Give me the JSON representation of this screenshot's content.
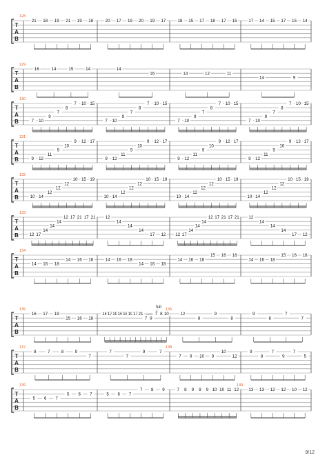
{
  "clef": [
    "T",
    "A",
    "B"
  ],
  "page_number": "9/12",
  "systems": [
    {
      "numbers": [
        {
          "b": 0,
          "text": "128"
        }
      ],
      "notes": [
        [
          {
            "s": 1,
            "t": "21"
          },
          {
            "s": 1,
            "t": "18"
          },
          {
            "s": 1,
            "t": "19"
          },
          {
            "s": 1,
            "t": "21"
          },
          {
            "s": 1,
            "t": "19"
          },
          {
            "s": 1,
            "t": "18"
          }
        ],
        [
          {
            "s": 1,
            "t": "20"
          },
          {
            "s": 1,
            "t": "17"
          },
          {
            "s": 1,
            "t": "19"
          },
          {
            "s": 1,
            "t": "20"
          },
          {
            "s": 1,
            "t": "19"
          },
          {
            "s": 1,
            "t": "17"
          }
        ],
        [
          {
            "s": 1,
            "t": "18"
          },
          {
            "s": 1,
            "t": "15"
          },
          {
            "s": 1,
            "t": "17"
          },
          {
            "s": 1,
            "t": "18"
          },
          {
            "s": 1,
            "t": "17"
          },
          {
            "s": 1,
            "t": "15"
          }
        ],
        [
          {
            "s": 1,
            "t": "17"
          },
          {
            "s": 1,
            "t": "14"
          },
          {
            "s": 1,
            "t": "15"
          },
          {
            "s": 1,
            "t": "17"
          },
          {
            "s": 1,
            "t": "15"
          },
          {
            "s": 1,
            "t": "14"
          }
        ]
      ]
    },
    {
      "numbers": [
        {
          "b": 0,
          "text": "129"
        }
      ],
      "notes": [
        [
          {
            "s": 1,
            "t": "16"
          },
          {
            "s": 1,
            "t": "14"
          },
          {
            "s": 1,
            "t": "15"
          },
          {
            "s": 1,
            "t": "14"
          }
        ],
        [
          {
            "s": 1,
            "t": "14"
          },
          {
            "s": 2,
            "t": "16"
          }
        ],
        [
          {
            "s": 2,
            "t": "14"
          },
          {
            "s": 2,
            "t": "12"
          },
          {
            "s": 2,
            "t": "11"
          }
        ],
        [
          {
            "s": 3,
            "t": "14"
          },
          {
            "s": 3,
            "t": "9"
          }
        ]
      ]
    },
    {
      "numbers": [
        {
          "b": 0,
          "text": "130"
        }
      ],
      "notes": [
        [
          {
            "s": 5,
            "t": "7"
          },
          {
            "s": 5,
            "t": "10"
          },
          {
            "s": 4,
            "t": "9"
          },
          {
            "s": 3,
            "t": "7"
          },
          {
            "s": 2,
            "t": "8"
          },
          {
            "s": 1,
            "t": "7"
          },
          {
            "s": 1,
            "t": "10"
          },
          {
            "s": 1,
            "t": "15"
          }
        ],
        [
          {
            "s": 5,
            "t": "7"
          },
          {
            "s": 5,
            "t": "10"
          },
          {
            "s": 4,
            "t": "9"
          },
          {
            "s": 3,
            "t": "7"
          },
          {
            "s": 2,
            "t": "8"
          },
          {
            "s": 1,
            "t": "7"
          },
          {
            "s": 1,
            "t": "10"
          },
          {
            "s": 1,
            "t": "15"
          }
        ],
        [
          {
            "s": 5,
            "t": "7"
          },
          {
            "s": 5,
            "t": "10"
          },
          {
            "s": 4,
            "t": "9"
          },
          {
            "s": 3,
            "t": "7"
          },
          {
            "s": 2,
            "t": "8"
          },
          {
            "s": 1,
            "t": "7"
          },
          {
            "s": 1,
            "t": "10"
          },
          {
            "s": 1,
            "t": "15"
          }
        ],
        [
          {
            "s": 5,
            "t": "7"
          },
          {
            "s": 5,
            "t": "10"
          },
          {
            "s": 4,
            "t": "9"
          },
          {
            "s": 3,
            "t": "7"
          },
          {
            "s": 2,
            "t": "8"
          },
          {
            "s": 1,
            "t": "7"
          },
          {
            "s": 1,
            "t": "10"
          },
          {
            "s": 1,
            "t": "15"
          }
        ]
      ]
    },
    {
      "numbers": [
        {
          "b": 0,
          "text": "131"
        }
      ],
      "notes": [
        [
          {
            "s": 5,
            "t": "9"
          },
          {
            "s": 5,
            "t": "12"
          },
          {
            "s": 4,
            "t": "11"
          },
          {
            "s": 3,
            "t": "9"
          },
          {
            "s": 2,
            "t": "10"
          },
          {
            "s": 1,
            "t": "9"
          },
          {
            "s": 1,
            "t": "12"
          },
          {
            "s": 1,
            "t": "17"
          }
        ],
        [
          {
            "s": 5,
            "t": "9"
          },
          {
            "s": 5,
            "t": "12"
          },
          {
            "s": 4,
            "t": "11"
          },
          {
            "s": 3,
            "t": "9"
          },
          {
            "s": 2,
            "t": "10"
          },
          {
            "s": 1,
            "t": "9"
          },
          {
            "s": 1,
            "t": "12"
          },
          {
            "s": 1,
            "t": "17"
          }
        ],
        [
          {
            "s": 5,
            "t": "9"
          },
          {
            "s": 5,
            "t": "12"
          },
          {
            "s": 4,
            "t": "11"
          },
          {
            "s": 3,
            "t": "9"
          },
          {
            "s": 2,
            "t": "10"
          },
          {
            "s": 1,
            "t": "9"
          },
          {
            "s": 1,
            "t": "12"
          },
          {
            "s": 1,
            "t": "17"
          }
        ],
        [
          {
            "s": 5,
            "t": "9"
          },
          {
            "s": 5,
            "t": "12"
          },
          {
            "s": 4,
            "t": "11"
          },
          {
            "s": 3,
            "t": "9"
          },
          {
            "s": 2,
            "t": "10"
          },
          {
            "s": 1,
            "t": "9"
          },
          {
            "s": 1,
            "t": "12"
          },
          {
            "s": 1,
            "t": "17"
          }
        ]
      ]
    },
    {
      "numbers": [
        {
          "b": 0,
          "text": "132"
        }
      ],
      "notes": [
        [
          {
            "s": 5,
            "t": "10"
          },
          {
            "s": 5,
            "t": "14"
          },
          {
            "s": 4,
            "t": "12"
          },
          {
            "s": 3,
            "t": "12"
          },
          {
            "s": 2,
            "t": "12"
          },
          {
            "s": 1,
            "t": "10"
          },
          {
            "s": 1,
            "t": "15"
          },
          {
            "s": 1,
            "t": "19"
          }
        ],
        [
          {
            "s": 5,
            "t": "10"
          },
          {
            "s": 5,
            "t": "14"
          },
          {
            "s": 4,
            "t": "12"
          },
          {
            "s": 3,
            "t": "12"
          },
          {
            "s": 2,
            "t": "12"
          },
          {
            "s": 1,
            "t": "10"
          },
          {
            "s": 1,
            "t": "15"
          },
          {
            "s": 1,
            "t": "19"
          }
        ],
        [
          {
            "s": 5,
            "t": "10"
          },
          {
            "s": 5,
            "t": "14"
          },
          {
            "s": 4,
            "t": "12"
          },
          {
            "s": 3,
            "t": "12"
          },
          {
            "s": 2,
            "t": "12"
          },
          {
            "s": 1,
            "t": "10"
          },
          {
            "s": 1,
            "t": "15"
          },
          {
            "s": 1,
            "t": "19"
          }
        ],
        [
          {
            "s": 5,
            "t": "10"
          },
          {
            "s": 5,
            "t": "14"
          },
          {
            "s": 4,
            "t": "12"
          },
          {
            "s": 3,
            "t": "12"
          },
          {
            "s": 2,
            "t": "12"
          },
          {
            "s": 1,
            "t": "10"
          },
          {
            "s": 1,
            "t": "15"
          },
          {
            "s": 1,
            "t": "19"
          }
        ]
      ]
    },
    {
      "numbers": [
        {
          "b": 0,
          "text": "133"
        }
      ],
      "notes": [
        [
          {
            "s": 5,
            "t": "12"
          },
          {
            "s": 5,
            "t": "17"
          },
          {
            "s": 4,
            "t": "14"
          },
          {
            "s": 3,
            "t": "14"
          },
          {
            "s": 2,
            "t": "14"
          },
          {
            "s": 1,
            "t": "12"
          },
          {
            "s": 1,
            "t": "17"
          },
          {
            "s": 1,
            "t": "21"
          },
          {
            "s": 1,
            "t": "17"
          },
          {
            "s": 1,
            "t": "21"
          }
        ],
        [
          {
            "s": 1,
            "t": "12"
          },
          {
            "s": 2,
            "t": "14"
          },
          {
            "s": 3,
            "t": "14"
          },
          {
            "s": 4,
            "t": "14"
          },
          {
            "s": 5,
            "t": "17"
          },
          {
            "s": 5,
            "t": "12"
          }
        ],
        [
          {
            "s": 5,
            "t": "12"
          },
          {
            "s": 5,
            "t": "17"
          },
          {
            "s": 4,
            "t": "14"
          },
          {
            "s": 3,
            "t": "14"
          },
          {
            "s": 2,
            "t": "14"
          },
          {
            "s": 1,
            "t": "12"
          },
          {
            "s": 1,
            "t": "17"
          },
          {
            "s": 1,
            "t": "21"
          },
          {
            "s": 1,
            "t": "17"
          },
          {
            "s": 1,
            "t": "21"
          }
        ],
        [
          {
            "s": 1,
            "t": "12"
          },
          {
            "s": 2,
            "t": "14"
          },
          {
            "s": 3,
            "t": "14"
          },
          {
            "s": 4,
            "t": "14"
          },
          {
            "s": 5,
            "t": "17"
          },
          {
            "s": 5,
            "t": "12"
          }
        ]
      ]
    },
    {
      "numbers": [
        {
          "b": 0,
          "text": "134"
        }
      ],
      "notes": [
        [
          {
            "s": 3,
            "t": "14"
          },
          {
            "s": 3,
            "t": "16"
          },
          {
            "s": 3,
            "t": "18"
          },
          {
            "s": 2,
            "t": "14"
          },
          {
            "s": 2,
            "t": "16"
          },
          {
            "s": 2,
            "t": "18"
          }
        ],
        [
          {
            "s": 2,
            "t": "14"
          },
          {
            "s": 2,
            "t": "16"
          },
          {
            "s": 2,
            "t": "18"
          },
          {
            "s": 3,
            "t": "14"
          },
          {
            "s": 3,
            "t": "16"
          },
          {
            "s": 3,
            "t": "18"
          }
        ],
        [
          {
            "s": 2,
            "t": "14"
          },
          {
            "s": 2,
            "t": "16"
          },
          {
            "s": 2,
            "t": "18"
          },
          {
            "s": 1,
            "t": "15"
          },
          {
            "s": 1,
            "t": "16"
          },
          {
            "s": 1,
            "t": "18"
          }
        ],
        [
          {
            "s": 2,
            "t": "14"
          },
          {
            "s": 2,
            "t": "16"
          },
          {
            "s": 2,
            "t": "18"
          },
          {
            "s": 1,
            "t": "15"
          },
          {
            "s": 1,
            "t": "16"
          },
          {
            "s": 1,
            "t": "18"
          }
        ]
      ]
    },
    {
      "numbers": [
        {
          "b": 0,
          "text": "135"
        },
        {
          "b": 2,
          "text": "136"
        }
      ],
      "bend_label": "full",
      "notes": [
        [
          {
            "s": 1,
            "t": "16"
          },
          {
            "s": 1,
            "t": "17"
          },
          {
            "s": 1,
            "t": "19"
          },
          {
            "s": 2,
            "t": "15"
          },
          {
            "s": 2,
            "t": "16"
          },
          {
            "s": 2,
            "t": "18"
          }
        ],
        [
          {
            "s": 1,
            "t": "16"
          },
          {
            "s": 1,
            "t": "17"
          },
          {
            "s": 1,
            "t": "19"
          },
          {
            "s": 1,
            "t": "16"
          },
          {
            "s": 1,
            "t": "18"
          },
          {
            "s": 1,
            "t": "19"
          },
          {
            "s": 1,
            "t": "17"
          },
          {
            "s": 1,
            "t": "21"
          },
          {
            "s": 2,
            "t": "7"
          },
          {
            "s": 2,
            "t": "9"
          },
          {
            "s": 1,
            "t": "7"
          },
          {
            "s": 1,
            "t": "8"
          },
          {
            "s": 1,
            "t": "10"
          }
        ],
        [
          {
            "s": 1,
            "t": "12"
          },
          {
            "s": 2,
            "t": "8"
          },
          {
            "s": 1,
            "t": "9"
          },
          {
            "s": 2,
            "t": "8"
          }
        ],
        [
          {
            "s": 1,
            "t": "9"
          },
          {
            "s": 2,
            "t": "8"
          },
          {
            "s": 1,
            "t": "7"
          },
          {
            "s": 2,
            "t": "7"
          }
        ]
      ]
    },
    {
      "numbers": [
        {
          "b": 0,
          "text": "137"
        },
        {
          "b": 2,
          "text": "138"
        }
      ],
      "notes": [
        [
          {
            "s": 1,
            "t": "8"
          },
          {
            "s": 1,
            "t": "7"
          },
          {
            "s": 1,
            "t": "8"
          },
          {
            "s": 1,
            "t": "9"
          },
          {
            "s": 2,
            "t": "7"
          }
        ],
        [
          {
            "s": 1,
            "t": "7"
          },
          {
            "s": 2,
            "t": "7"
          },
          {
            "s": 1,
            "t": "9"
          },
          {
            "s": 1,
            "t": "7"
          }
        ],
        [
          {
            "s": 2,
            "t": "7"
          },
          {
            "s": 2,
            "t": "9"
          },
          {
            "s": 2,
            "t": "10"
          },
          {
            "s": 2,
            "t": "9"
          },
          {
            "s": 1,
            "t": "10"
          },
          {
            "s": 2,
            "t": "12"
          }
        ],
        [
          {
            "s": 1,
            "t": "9"
          },
          {
            "s": 2,
            "t": "8"
          },
          {
            "s": 1,
            "t": "7"
          },
          {
            "s": 2,
            "t": "9"
          },
          {
            "s": 1,
            "t": "7"
          },
          {
            "s": 2,
            "t": "5"
          }
        ]
      ]
    },
    {
      "numbers": [
        {
          "b": 0,
          "text": "139"
        },
        {
          "b": 3,
          "text": "140"
        }
      ],
      "notes": [
        [
          {
            "s": 3,
            "t": "5"
          },
          {
            "s": 3,
            "t": "6"
          },
          {
            "s": 3,
            "t": "7"
          },
          {
            "s": 2,
            "t": "5"
          },
          {
            "s": 2,
            "t": "6"
          },
          {
            "s": 2,
            "t": "7"
          }
        ],
        [
          {
            "s": 2,
            "t": "5"
          },
          {
            "s": 2,
            "t": "6"
          },
          {
            "s": 2,
            "t": "7"
          },
          {
            "s": 1,
            "t": "7"
          },
          {
            "s": 1,
            "t": "8"
          },
          {
            "s": 1,
            "t": "9"
          }
        ],
        [
          {
            "s": 1,
            "t": "7"
          },
          {
            "s": 1,
            "t": "8"
          },
          {
            "s": 1,
            "t": "9"
          },
          {
            "s": 1,
            "t": "8"
          },
          {
            "s": 1,
            "t": "9"
          },
          {
            "s": 1,
            "t": "10"
          },
          {
            "s": 1,
            "t": "10"
          },
          {
            "s": 1,
            "t": "11"
          },
          {
            "s": 1,
            "t": "12"
          }
        ],
        [
          {
            "s": 1,
            "t": "13"
          },
          {
            "s": 1,
            "t": "13"
          },
          {
            "s": 1,
            "t": "12"
          },
          {
            "s": 1,
            "t": "12"
          },
          {
            "s": 1,
            "t": "10"
          },
          {
            "s": 1,
            "t": "12"
          }
        ]
      ]
    }
  ]
}
